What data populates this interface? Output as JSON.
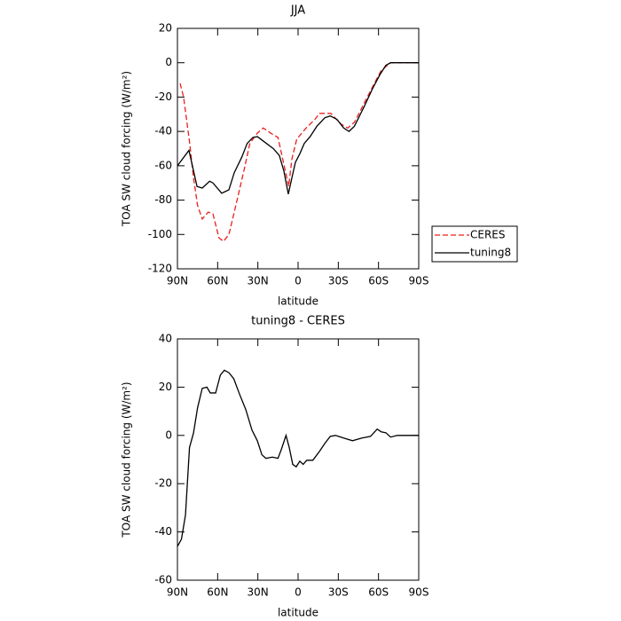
{
  "chart_data": [
    {
      "type": "line",
      "title": "JJA",
      "xlabel": "latitude",
      "ylabel": "TOA SW cloud forcing (W/m²)",
      "xlim": [
        90,
        -90
      ],
      "ylim": [
        20,
        -120
      ],
      "xticks": [
        {
          "value": 90,
          "label": "90N"
        },
        {
          "value": 60,
          "label": "60N"
        },
        {
          "value": 30,
          "label": "30N"
        },
        0,
        {
          "value": -30,
          "label": "30S"
        },
        {
          "value": -60,
          "label": "60S"
        },
        {
          "value": -90,
          "label": "90S"
        }
      ],
      "yticks": [
        20,
        0,
        -20,
        -40,
        -60,
        -80,
        -100,
        -120
      ],
      "legend": "right",
      "series": [
        {
          "name": "CERES",
          "color": "#e8201c",
          "style": "dashed",
          "x": [
            88,
            85.4,
            81,
            78,
            75,
            71.5,
            67,
            63.5,
            59,
            55.6,
            51.6,
            47,
            40,
            36,
            30.4,
            26,
            20.4,
            15,
            7,
            4.6,
            1,
            -6,
            -12.6,
            -16,
            -24.5,
            -32,
            -37,
            -42,
            -55.6,
            -62,
            -69,
            -90
          ],
          "values": [
            -12,
            -20,
            -46,
            -67,
            -83,
            -91,
            -87,
            -88,
            -102,
            -104,
            -100,
            -85,
            -61.5,
            -47,
            -41,
            -38,
            -41,
            -43.5,
            -72,
            -56,
            -44.5,
            -38,
            -33,
            -29.5,
            -29.5,
            -35.7,
            -38,
            -34.7,
            -14,
            -4.5,
            0,
            0
          ]
        },
        {
          "name": "tuning8",
          "color": "#000000",
          "style": "solid",
          "x": [
            90,
            81.4,
            75.4,
            71.5,
            66,
            63.5,
            57,
            51.6,
            47.6,
            42,
            38,
            33.7,
            30.4,
            27,
            18.5,
            14,
            10.6,
            7.3,
            4.6,
            2,
            -1.3,
            -4.6,
            -9,
            -14,
            -20,
            -24,
            -29,
            -34,
            -38,
            -42,
            -49,
            -55.6,
            -61,
            -65.5,
            -69,
            -90
          ],
          "values": [
            -60,
            -51,
            -72,
            -73,
            -69,
            -70,
            -76,
            -74,
            -64,
            -55,
            -47,
            -43.5,
            -43,
            -45,
            -50,
            -54,
            -63,
            -76.5,
            -67,
            -58,
            -53,
            -47,
            -43,
            -37,
            -32,
            -31,
            -33,
            -38,
            -40,
            -37,
            -26,
            -15,
            -7,
            -1.5,
            0,
            0
          ]
        }
      ]
    },
    {
      "type": "line",
      "title": "tuning8 - CERES",
      "xlabel": "latitude",
      "ylabel": "TOA SW cloud forcing (W/m²)",
      "xlim": [
        90,
        -90
      ],
      "ylim": [
        40,
        -60
      ],
      "xticks": [
        {
          "value": 90,
          "label": "90N"
        },
        {
          "value": 60,
          "label": "60N"
        },
        {
          "value": 30,
          "label": "30N"
        },
        0,
        {
          "value": -30,
          "label": "30S"
        },
        {
          "value": -60,
          "label": "60S"
        },
        {
          "value": -90,
          "label": "90S"
        }
      ],
      "yticks": [
        40,
        20,
        0,
        -20,
        -40,
        -60
      ],
      "series": [
        {
          "color": "#000000",
          "style": "solid",
          "x": [
            90,
            87,
            84,
            81,
            78,
            75,
            71.5,
            68,
            65.5,
            61.5,
            58,
            55,
            51.6,
            48,
            43.6,
            39,
            34.4,
            30.4,
            27,
            24,
            19.2,
            15,
            12.6,
            9,
            6.6,
            4,
            1.4,
            -1.3,
            -3.8,
            -6.5,
            -11,
            -16,
            -20,
            -24,
            -28,
            -34,
            -40.6,
            -47.6,
            -54,
            -59,
            -62,
            -65.5,
            -69,
            -74,
            -90
          ],
          "values": [
            -46,
            -43,
            -33,
            -5,
            1,
            11.4,
            19.5,
            20,
            17.6,
            17.6,
            25,
            27,
            26,
            23.5,
            17,
            10.7,
            2.2,
            -2.2,
            -8,
            -9.5,
            -9,
            -9.5,
            -6,
            0,
            -5,
            -12,
            -13,
            -10.7,
            -12,
            -10.3,
            -10.3,
            -6.6,
            -3.3,
            -0.4,
            0,
            -1.1,
            -2.2,
            -1.1,
            -0.4,
            2.6,
            1.5,
            1.1,
            -0.7,
            0,
            0
          ]
        }
      ]
    }
  ]
}
